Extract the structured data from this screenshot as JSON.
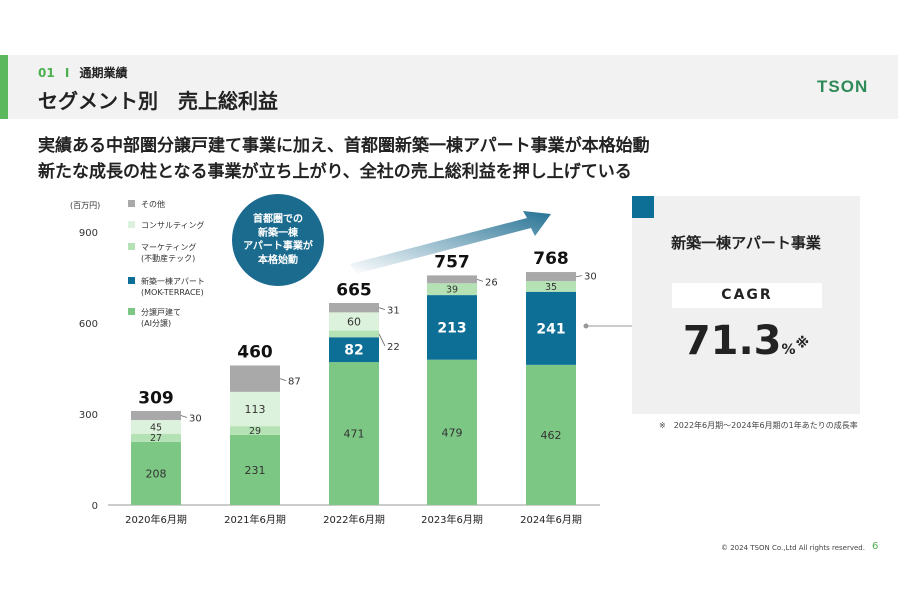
{
  "header": {
    "section_number": "01",
    "separator": "I",
    "section_label": "通期業績",
    "title": "セグメント別　売上総利益",
    "logo": "TSON"
  },
  "headline": {
    "line1": "実績ある中部圏分譲戸建て事業に加え、首都圏新築一棟アパート事業が本格始動",
    "line2": "新たな成長の柱となる事業が立ち上がり、全社の売上総利益を押し上げている"
  },
  "callout": {
    "lines": [
      "首都圏での",
      "新築一棟",
      "アパート事業が",
      "本格始動"
    ]
  },
  "side_panel": {
    "title": "新築一棟アパート事業",
    "cagr_label": "CAGR",
    "cagr_value": "71.3",
    "cagr_unit": "%",
    "cagr_mark": "※",
    "footnote": "※　2022年6月期～2024年6月期の1年あたりの成長率"
  },
  "footer": {
    "copyright": "© 2024 TSON Co.,Ltd All rights reserved.",
    "page_number": "6"
  },
  "colors": {
    "accent_green": "#5cb85c",
    "bunjo": "#7dc785",
    "mok": "#0d6e96",
    "marketing": "#b5e2b5",
    "consulting": "#ddf2dd",
    "other": "#a9a9a9",
    "callout": "#1b6b8f"
  },
  "chart_data": {
    "type": "bar",
    "stacked": true,
    "unit_label": "(百万円)",
    "categories": [
      "2020年6月期",
      "2021年6月期",
      "2022年6月期",
      "2023年6月期",
      "2024年6月期"
    ],
    "series": [
      {
        "name": "分譲戸建て\n(AI分譲)",
        "values": [
          208,
          231,
          471,
          479,
          462
        ]
      },
      {
        "name": "新築一棟アパート\n(MOK-TERRACE)",
        "values": [
          0,
          0,
          82,
          213,
          241
        ]
      },
      {
        "name": "マーケティング\n(不動産テック)",
        "values": [
          27,
          29,
          22,
          39,
          35
        ]
      },
      {
        "name": "コンサルティング",
        "values": [
          45,
          113,
          60,
          0,
          0
        ]
      },
      {
        "name": "その他",
        "values": [
          30,
          87,
          31,
          26,
          30
        ]
      }
    ],
    "totals": [
      309,
      460,
      665,
      757,
      768
    ],
    "yticks": [
      0,
      300,
      600,
      900
    ],
    "ylim": [
      0,
      900
    ],
    "legend_position": "top-left"
  }
}
